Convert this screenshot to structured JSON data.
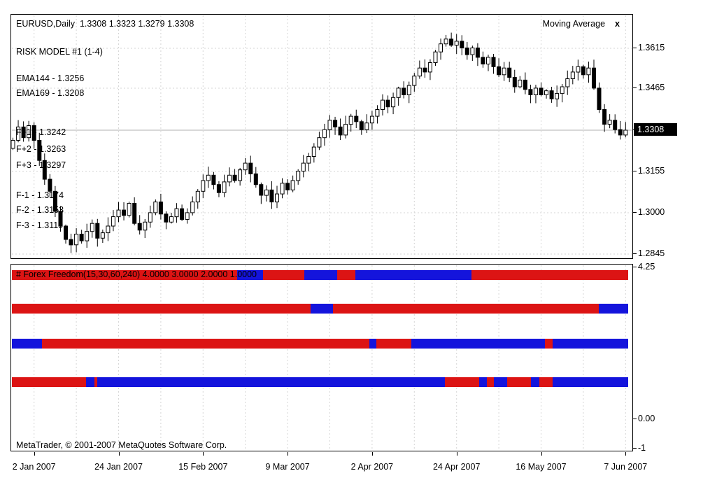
{
  "main_chart": {
    "symbol_title": "EURUSD,Daily  1.3308 1.3323 1.3279 1.3308",
    "overlays": {
      "risk_model": "RISK MODEL #1 (1-4)",
      "ema144": "EMA144 - 1.3256",
      "ema169": "EMA169 - 1.3208",
      "f_plus_1": "F+1 - 1.3242",
      "f_plus_2": "F+2 - 1.3263",
      "f_plus_3": "F+3 - 1.3297",
      "f_minus_1": "F-1 - 1.3174",
      "f_minus_2": "F-2 - 1.3153",
      "f_minus_3": "F-3 - 1.3119"
    },
    "indicator_badge": {
      "label": "Moving Average",
      "close": "x"
    },
    "price_axis": {
      "ticks": [
        "1.3615",
        "1.3465",
        "1.3155",
        "1.3000",
        "1.2845"
      ],
      "current": "1.3308"
    }
  },
  "subwindow": {
    "label": "# Forex Freedom(15,30,60,240) 4.0000 3.0000 2.0000 1.0000",
    "axis_ticks": [
      "4.25",
      "0.00",
      "-1"
    ]
  },
  "time_axis": {
    "labels": [
      "2 Jan 2007",
      "24 Jan 2007",
      "15 Feb 2007",
      "9 Mar 2007",
      "2 Apr 2007",
      "24 Apr 2007",
      "16 May 2007",
      "7 Jun 2007"
    ]
  },
  "footer": {
    "copyright": "MetaTrader, © 2001-2007 MetaQuotes Software Corp."
  },
  "colors": {
    "up_candle": "#ffffff",
    "down_candle": "#000000",
    "candle_stroke": "#000000",
    "grid": "#d6d6d6",
    "current_price_line": "#b0b0b0",
    "freedom_red": "#dc1414",
    "freedom_blue": "#1414dc",
    "price_box_bg": "#000000",
    "price_box_text": "#ffffff"
  },
  "chart_data": [
    {
      "type": "candlestick",
      "title": "EURUSD,Daily",
      "last_ohlc": {
        "open": 1.3308,
        "high": 1.3323,
        "low": 1.3279,
        "close": 1.3308
      },
      "open_rule": "previous_close",
      "first_open": 1.324,
      "closes": [
        1.327,
        1.332,
        1.328,
        1.3325,
        1.327,
        1.3195,
        1.3125,
        1.308,
        1.3005,
        1.295,
        1.29,
        1.288,
        1.292,
        1.2895,
        1.293,
        1.296,
        1.2905,
        1.2925,
        1.295,
        1.2985,
        1.301,
        1.299,
        1.3035,
        1.296,
        1.2935,
        1.2965,
        1.3,
        1.304,
        1.2995,
        1.2965,
        1.2985,
        1.3015,
        1.2975,
        1.3,
        1.304,
        1.308,
        1.312,
        1.314,
        1.3105,
        1.3075,
        1.3115,
        1.314,
        1.312,
        1.316,
        1.3185,
        1.3145,
        1.3105,
        1.3065,
        1.3085,
        1.304,
        1.307,
        1.311,
        1.3085,
        1.312,
        1.3155,
        1.3185,
        1.321,
        1.3245,
        1.328,
        1.331,
        1.3345,
        1.332,
        1.329,
        1.333,
        1.336,
        1.334,
        1.331,
        1.3335,
        1.336,
        1.3385,
        1.342,
        1.3395,
        1.343,
        1.3465,
        1.344,
        1.3475,
        1.351,
        1.354,
        1.3525,
        1.356,
        1.36,
        1.363,
        1.3648,
        1.3625,
        1.364,
        1.3615,
        1.359,
        1.3615,
        1.358,
        1.3555,
        1.358,
        1.3545,
        1.3515,
        1.354,
        1.3505,
        1.347,
        1.3495,
        1.346,
        1.344,
        1.3465,
        1.344,
        1.3455,
        1.3425,
        1.3445,
        1.347,
        1.35,
        1.3525,
        1.3545,
        1.3515,
        1.354,
        1.3465,
        1.3385,
        1.333,
        1.3345,
        1.331,
        1.329,
        1.3308
      ],
      "y_axis_ticks": [
        1.3615,
        1.3465,
        1.3308,
        1.3155,
        1.3,
        1.2845
      ],
      "x_tick_labels": [
        "2 Jan 2007",
        "24 Jan 2007",
        "15 Feb 2007",
        "9 Mar 2007",
        "2 Apr 2007",
        "24 Apr 2007",
        "16 May 2007",
        "7 Jun 2007"
      ],
      "x_tick_candle_indices": [
        4,
        20,
        36,
        52,
        68,
        84,
        100,
        116
      ],
      "ylim": [
        1.2845,
        1.368
      ],
      "grid": true
    },
    {
      "type": "heatmap",
      "title": "# Forex Freedom(15,30,60,240)",
      "current_values": [
        4.0,
        3.0,
        2.0,
        1.0
      ],
      "ylim": [
        -1,
        4.25
      ],
      "rows": [
        {
          "level": "4.0000",
          "segments": [
            [
              "red",
              0.366
            ],
            [
              "blue",
              0.041
            ],
            [
              "red",
              0.067
            ],
            [
              "blue",
              0.054
            ],
            [
              "red",
              0.029
            ],
            [
              "blue",
              0.189
            ],
            [
              "red",
              0.254
            ]
          ]
        },
        {
          "level": "3.0000",
          "segments": [
            [
              "red",
              0.485
            ],
            [
              "blue",
              0.036
            ],
            [
              "red",
              0.431
            ],
            [
              "blue",
              0.048
            ]
          ]
        },
        {
          "level": "2.0000",
          "segments": [
            [
              "blue",
              0.049
            ],
            [
              "red",
              0.531
            ],
            [
              "blue",
              0.011
            ],
            [
              "red",
              0.057
            ],
            [
              "blue",
              0.217
            ],
            [
              "red",
              0.013
            ],
            [
              "blue",
              0.122
            ]
          ]
        },
        {
          "level": "1.0000",
          "segments": [
            [
              "red",
              0.12
            ],
            [
              "blue",
              0.014
            ],
            [
              "red",
              0.004
            ],
            [
              "blue",
              0.565
            ],
            [
              "red",
              0.055
            ],
            [
              "blue",
              0.013
            ],
            [
              "red",
              0.011
            ],
            [
              "blue",
              0.022
            ],
            [
              "red",
              0.038
            ],
            [
              "blue",
              0.014
            ],
            [
              "red",
              0.022
            ],
            [
              "blue",
              0.122
            ]
          ]
        }
      ]
    }
  ]
}
